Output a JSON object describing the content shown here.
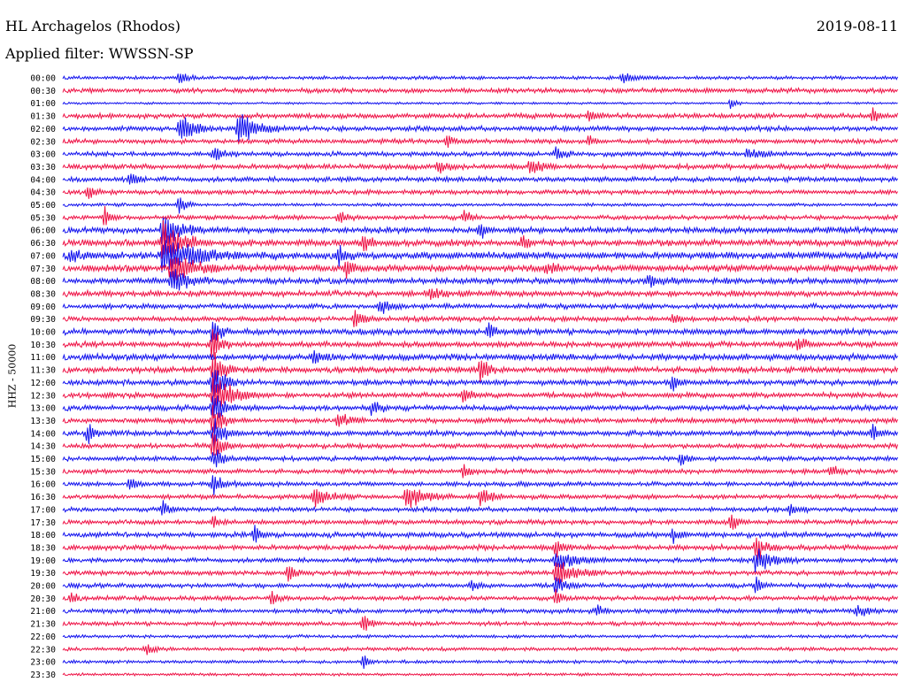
{
  "header": {
    "station": "HL Archagelos (Rhodos)",
    "filter": "Applied filter: WWSSN-SP",
    "date": "2019-08-11"
  },
  "chart_data": {
    "type": "line",
    "ylabel": "HHZ - 50000",
    "row_labels": [
      "00:00",
      "00:30",
      "01:00",
      "01:30",
      "02:00",
      "02:30",
      "03:00",
      "03:30",
      "04:00",
      "04:30",
      "05:00",
      "05:30",
      "06:00",
      "06:30",
      "07:00",
      "07:30",
      "08:00",
      "08:30",
      "09:00",
      "09:30",
      "10:00",
      "10:30",
      "11:00",
      "11:30",
      "12:00",
      "12:30",
      "13:00",
      "13:30",
      "14:00",
      "14:30",
      "15:00",
      "15:30",
      "16:00",
      "16:30",
      "17:00",
      "17:30",
      "18:00",
      "18:30",
      "19:00",
      "19:30",
      "20:00",
      "20:30",
      "21:00",
      "21:30",
      "22:00",
      "22:30",
      "23:00",
      "23:30"
    ],
    "series_colors": [
      "#1010ee",
      "#ee1044"
    ],
    "baseline_noise": [
      1.5,
      2.0,
      1.0,
      2.2,
      2.2,
      2.0,
      2.0,
      2.3,
      2.2,
      2.0,
      1.4,
      2.0,
      2.6,
      2.8,
      3.2,
      3.0,
      2.6,
      2.5,
      2.2,
      2.2,
      2.5,
      2.5,
      2.8,
      2.6,
      2.4,
      2.3,
      2.3,
      2.3,
      2.3,
      2.1,
      2.0,
      2.0,
      2.0,
      2.0,
      2.0,
      2.0,
      2.3,
      2.3,
      2.0,
      2.0,
      2.0,
      2.0,
      2.0,
      1.8,
      1.4,
      1.6,
      1.4,
      1.2
    ],
    "events": [
      {
        "row": 0,
        "x": 0.67,
        "amp": 6,
        "dur": 0.05
      },
      {
        "row": 0,
        "x": 0.14,
        "amp": 10,
        "dur": 0.02
      },
      {
        "row": 2,
        "x": 0.8,
        "amp": 9,
        "dur": 0.015
      },
      {
        "row": 3,
        "x": 0.63,
        "amp": 10,
        "dur": 0.02
      },
      {
        "row": 3,
        "x": 0.97,
        "amp": 10,
        "dur": 0.02
      },
      {
        "row": 4,
        "x": 0.14,
        "amp": 22,
        "dur": 0.04
      },
      {
        "row": 4,
        "x": 0.21,
        "amp": 20,
        "dur": 0.06
      },
      {
        "row": 5,
        "x": 0.46,
        "amp": 10,
        "dur": 0.02
      },
      {
        "row": 5,
        "x": 0.63,
        "amp": 8,
        "dur": 0.02
      },
      {
        "row": 6,
        "x": 0.18,
        "amp": 10,
        "dur": 0.03
      },
      {
        "row": 6,
        "x": 0.59,
        "amp": 8,
        "dur": 0.03
      },
      {
        "row": 6,
        "x": 0.82,
        "amp": 8,
        "dur": 0.04
      },
      {
        "row": 7,
        "x": 0.45,
        "amp": 10,
        "dur": 0.02
      },
      {
        "row": 7,
        "x": 0.56,
        "amp": 12,
        "dur": 0.03
      },
      {
        "row": 8,
        "x": 0.08,
        "amp": 10,
        "dur": 0.02
      },
      {
        "row": 9,
        "x": 0.03,
        "amp": 10,
        "dur": 0.02
      },
      {
        "row": 10,
        "x": 0.14,
        "amp": 14,
        "dur": 0.02
      },
      {
        "row": 11,
        "x": 0.05,
        "amp": 12,
        "dur": 0.02
      },
      {
        "row": 11,
        "x": 0.33,
        "amp": 10,
        "dur": 0.02
      },
      {
        "row": 11,
        "x": 0.48,
        "amp": 10,
        "dur": 0.02
      },
      {
        "row": 12,
        "x": 0.12,
        "amp": 25,
        "dur": 0.05
      },
      {
        "row": 12,
        "x": 0.5,
        "amp": 14,
        "dur": 0.02
      },
      {
        "row": 13,
        "x": 0.12,
        "amp": 28,
        "dur": 0.06
      },
      {
        "row": 13,
        "x": 0.36,
        "amp": 14,
        "dur": 0.02
      },
      {
        "row": 13,
        "x": 0.55,
        "amp": 10,
        "dur": 0.02
      },
      {
        "row": 14,
        "x": 0.12,
        "amp": 30,
        "dur": 0.09
      },
      {
        "row": 14,
        "x": 0.01,
        "amp": 10,
        "dur": 0.03
      },
      {
        "row": 14,
        "x": 0.33,
        "amp": 12,
        "dur": 0.02
      },
      {
        "row": 15,
        "x": 0.13,
        "amp": 26,
        "dur": 0.06
      },
      {
        "row": 15,
        "x": 0.34,
        "amp": 14,
        "dur": 0.02
      },
      {
        "row": 15,
        "x": 0.58,
        "amp": 12,
        "dur": 0.02
      },
      {
        "row": 16,
        "x": 0.13,
        "amp": 20,
        "dur": 0.05
      },
      {
        "row": 16,
        "x": 0.7,
        "amp": 8,
        "dur": 0.04
      },
      {
        "row": 17,
        "x": 0.44,
        "amp": 8,
        "dur": 0.03
      },
      {
        "row": 18,
        "x": 0.38,
        "amp": 10,
        "dur": 0.03
      },
      {
        "row": 19,
        "x": 0.35,
        "amp": 12,
        "dur": 0.03
      },
      {
        "row": 19,
        "x": 0.73,
        "amp": 12,
        "dur": 0.02
      },
      {
        "row": 20,
        "x": 0.18,
        "amp": 26,
        "dur": 0.02
      },
      {
        "row": 20,
        "x": 0.51,
        "amp": 10,
        "dur": 0.02
      },
      {
        "row": 21,
        "x": 0.18,
        "amp": 30,
        "dur": 0.02
      },
      {
        "row": 21,
        "x": 0.88,
        "amp": 8,
        "dur": 0.03
      },
      {
        "row": 22,
        "x": 0.3,
        "amp": 8,
        "dur": 0.04
      },
      {
        "row": 23,
        "x": 0.18,
        "amp": 32,
        "dur": 0.03
      },
      {
        "row": 23,
        "x": 0.5,
        "amp": 20,
        "dur": 0.02
      },
      {
        "row": 24,
        "x": 0.18,
        "amp": 32,
        "dur": 0.03
      },
      {
        "row": 24,
        "x": 0.73,
        "amp": 10,
        "dur": 0.02
      },
      {
        "row": 25,
        "x": 0.18,
        "amp": 30,
        "dur": 0.06
      },
      {
        "row": 25,
        "x": 0.48,
        "amp": 14,
        "dur": 0.02
      },
      {
        "row": 26,
        "x": 0.18,
        "amp": 26,
        "dur": 0.03
      },
      {
        "row": 26,
        "x": 0.37,
        "amp": 10,
        "dur": 0.03
      },
      {
        "row": 27,
        "x": 0.18,
        "amp": 24,
        "dur": 0.03
      },
      {
        "row": 27,
        "x": 0.33,
        "amp": 10,
        "dur": 0.03
      },
      {
        "row": 28,
        "x": 0.03,
        "amp": 14,
        "dur": 0.02
      },
      {
        "row": 28,
        "x": 0.18,
        "amp": 24,
        "dur": 0.03
      },
      {
        "row": 28,
        "x": 0.97,
        "amp": 12,
        "dur": 0.02
      },
      {
        "row": 29,
        "x": 0.18,
        "amp": 20,
        "dur": 0.03
      },
      {
        "row": 30,
        "x": 0.18,
        "amp": 18,
        "dur": 0.03
      },
      {
        "row": 30,
        "x": 0.74,
        "amp": 10,
        "dur": 0.02
      },
      {
        "row": 31,
        "x": 0.48,
        "amp": 8,
        "dur": 0.03
      },
      {
        "row": 31,
        "x": 0.92,
        "amp": 10,
        "dur": 0.02
      },
      {
        "row": 32,
        "x": 0.18,
        "amp": 14,
        "dur": 0.03
      },
      {
        "row": 32,
        "x": 0.08,
        "amp": 10,
        "dur": 0.02
      },
      {
        "row": 33,
        "x": 0.3,
        "amp": 14,
        "dur": 0.05
      },
      {
        "row": 33,
        "x": 0.41,
        "amp": 16,
        "dur": 0.06
      },
      {
        "row": 33,
        "x": 0.5,
        "amp": 12,
        "dur": 0.04
      },
      {
        "row": 34,
        "x": 0.12,
        "amp": 12,
        "dur": 0.02
      },
      {
        "row": 34,
        "x": 0.87,
        "amp": 8,
        "dur": 0.03
      },
      {
        "row": 35,
        "x": 0.18,
        "amp": 10,
        "dur": 0.02
      },
      {
        "row": 35,
        "x": 0.8,
        "amp": 14,
        "dur": 0.02
      },
      {
        "row": 36,
        "x": 0.23,
        "amp": 14,
        "dur": 0.02
      },
      {
        "row": 36,
        "x": 0.73,
        "amp": 10,
        "dur": 0.02
      },
      {
        "row": 37,
        "x": 0.59,
        "amp": 14,
        "dur": 0.02
      },
      {
        "row": 37,
        "x": 0.83,
        "amp": 16,
        "dur": 0.03
      },
      {
        "row": 38,
        "x": 0.59,
        "amp": 16,
        "dur": 0.06
      },
      {
        "row": 38,
        "x": 0.83,
        "amp": 18,
        "dur": 0.05
      },
      {
        "row": 39,
        "x": 0.59,
        "amp": 18,
        "dur": 0.06
      },
      {
        "row": 39,
        "x": 0.27,
        "amp": 12,
        "dur": 0.02
      },
      {
        "row": 40,
        "x": 0.59,
        "amp": 12,
        "dur": 0.03
      },
      {
        "row": 40,
        "x": 0.83,
        "amp": 12,
        "dur": 0.02
      },
      {
        "row": 40,
        "x": 0.49,
        "amp": 8,
        "dur": 0.02
      },
      {
        "row": 41,
        "x": 0.59,
        "amp": 10,
        "dur": 0.02
      },
      {
        "row": 41,
        "x": 0.25,
        "amp": 10,
        "dur": 0.02
      },
      {
        "row": 41,
        "x": 0.01,
        "amp": 10,
        "dur": 0.02
      },
      {
        "row": 42,
        "x": 0.64,
        "amp": 10,
        "dur": 0.02
      },
      {
        "row": 42,
        "x": 0.95,
        "amp": 8,
        "dur": 0.03
      },
      {
        "row": 43,
        "x": 0.36,
        "amp": 14,
        "dur": 0.02
      },
      {
        "row": 45,
        "x": 0.1,
        "amp": 8,
        "dur": 0.02
      },
      {
        "row": 46,
        "x": 0.36,
        "amp": 8,
        "dur": 0.02
      }
    ]
  }
}
